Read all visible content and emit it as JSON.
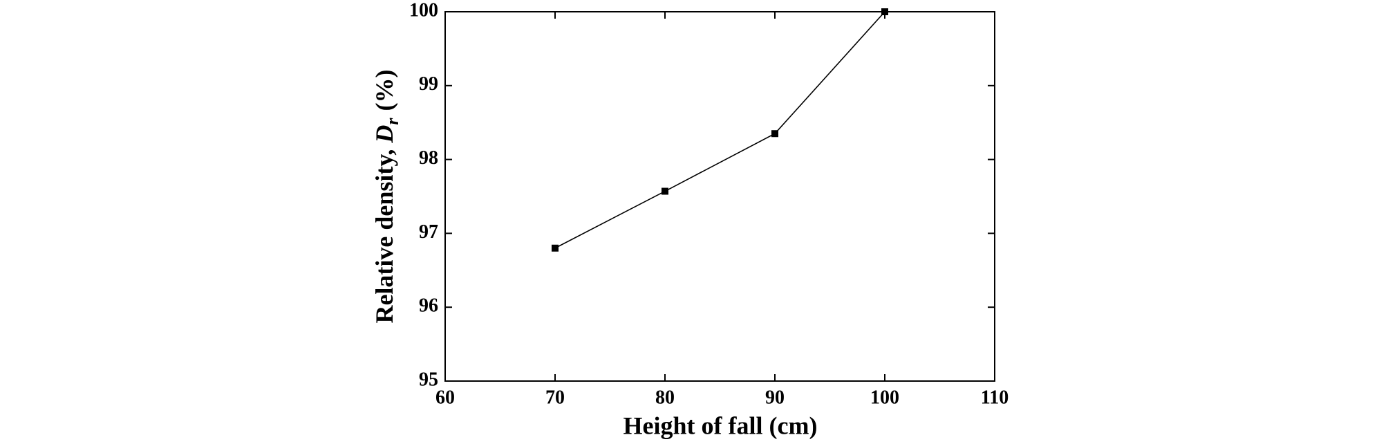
{
  "chart_data": {
    "type": "line",
    "x_label": "Height of fall (cm)",
    "y_label": {
      "text": "Relative density, ",
      "symbol": "D",
      "subscript": "r",
      "unit": "(%)"
    },
    "x": [
      70,
      80,
      90,
      100
    ],
    "series": [
      {
        "color": "#000000",
        "values": [
          96.8,
          97.57,
          98.35,
          100
        ]
      }
    ],
    "xlim": [
      60,
      110
    ],
    "xticks": [
      60,
      70,
      80,
      90,
      100,
      110
    ],
    "ylim": [
      95,
      100
    ],
    "yticks": [
      95,
      96,
      97,
      98,
      99,
      100
    ],
    "grid": false
  }
}
